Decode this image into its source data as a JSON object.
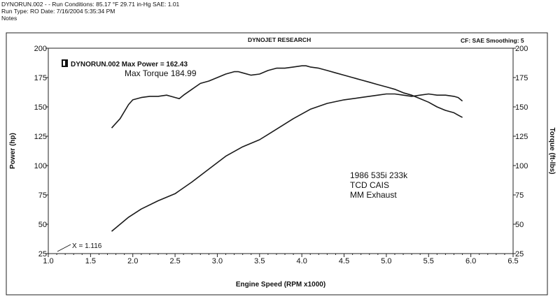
{
  "header": {
    "line1": "DYNORUN.002 -   - Run Conditions: 85.17 °F 29.71 in-Hg  SAE: 1.01",
    "line2": "Run Type: RO  Date: 7/16/2004 5:35:34 PM",
    "line3": "Notes",
    "company": "DYNOJET RESEARCH",
    "settings": "CF: SAE   Smoothing: 5"
  },
  "colors": {
    "line": "#1a1a1a",
    "frame": "#222222",
    "background": "#ffffff"
  },
  "chart_data": {
    "type": "line",
    "xlabel": "Engine Speed (RPM x1000)",
    "ylabel_left": "Power (hp)",
    "ylabel_right": "Torque (ft-lbs)",
    "xlim": [
      1.0,
      6.5
    ],
    "ylim_left": [
      25,
      200
    ],
    "ylim_right": [
      25,
      200
    ],
    "x_ticks": [
      "1.0",
      "1.5",
      "2.0",
      "2.5",
      "3.0",
      "3.5",
      "4.0",
      "4.5",
      "5.0",
      "5.5",
      "6.0",
      "6.5"
    ],
    "y_ticks_left": [
      "25",
      "50",
      "75",
      "100",
      "125",
      "150",
      "175",
      "200"
    ],
    "y_ticks_right": [
      "25",
      "50",
      "75",
      "100",
      "125",
      "150",
      "175",
      "200"
    ],
    "grid": false,
    "legend": {
      "label": "DYNORUN.002 Max Power = 162.43",
      "position": "top-left"
    },
    "annotations": {
      "max_torque": "Max Torque 184.99",
      "note_line1": "1986 535i 233k",
      "note_line2": "TCD CAIS",
      "note_line3": "MM Exhaust",
      "x_marker": "X = 1.116"
    },
    "series": [
      {
        "axis": "right",
        "x": [
          1.75,
          1.85,
          1.95,
          2.0,
          2.1,
          2.2,
          2.3,
          2.4,
          2.45,
          2.55,
          2.6,
          2.7,
          2.8,
          2.9,
          3.0,
          3.1,
          3.2,
          3.25,
          3.3,
          3.4,
          3.5,
          3.6,
          3.7,
          3.8,
          3.9,
          4.0,
          4.05,
          4.1,
          4.2,
          4.3,
          4.4,
          4.5,
          4.6,
          4.7,
          4.8,
          4.9,
          5.0,
          5.1,
          5.2,
          5.3,
          5.4,
          5.5,
          5.6,
          5.7,
          5.8,
          5.85,
          5.9
        ],
        "y": [
          132,
          140,
          152,
          156,
          158,
          159,
          159,
          160,
          159,
          157,
          160,
          165,
          170,
          172,
          175,
          178,
          180,
          180,
          179,
          177,
          178,
          181,
          183,
          183,
          184,
          185,
          185,
          184,
          183,
          181,
          179,
          177,
          175,
          173,
          171,
          169,
          167,
          165,
          162,
          160,
          157,
          154,
          150,
          147,
          145,
          143,
          141
        ]
      },
      {
        "axis": "left",
        "x": [
          1.75,
          1.85,
          1.95,
          2.1,
          2.3,
          2.5,
          2.7,
          2.9,
          3.1,
          3.3,
          3.5,
          3.7,
          3.9,
          4.1,
          4.3,
          4.5,
          4.7,
          4.9,
          5.0,
          5.1,
          5.2,
          5.3,
          5.4,
          5.5,
          5.6,
          5.7,
          5.8,
          5.85,
          5.9
        ],
        "y": [
          44,
          50,
          56,
          63,
          70,
          76,
          86,
          97,
          108,
          116,
          122,
          131,
          140,
          148,
          153,
          156,
          158,
          160,
          161,
          161,
          160,
          159,
          160,
          161,
          160,
          160,
          159,
          158,
          155
        ]
      }
    ]
  }
}
